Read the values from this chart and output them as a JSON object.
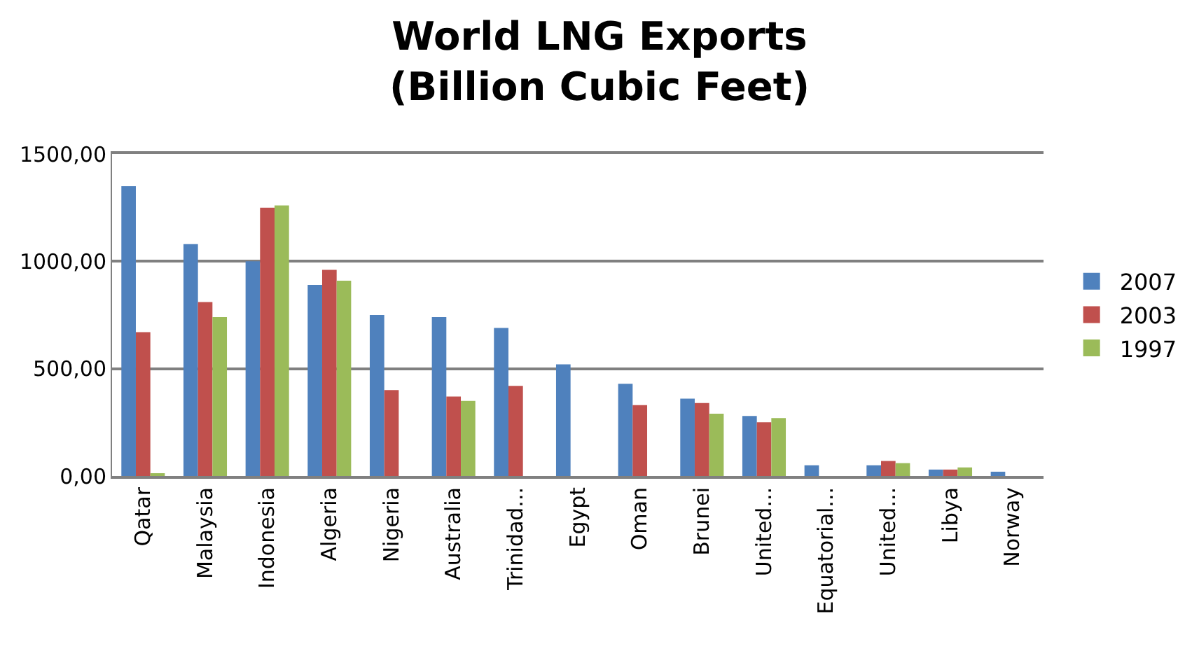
{
  "chart_data": {
    "type": "bar",
    "title": "World LNG Exports\n(Billion Cubic Feet)",
    "categories": [
      "Qatar",
      "Malaysia",
      "Indonesia",
      "Algeria",
      "Nigeria",
      "Australia",
      "Trinidad...",
      "Egypt",
      "Oman",
      "Brunei",
      "United...",
      "Equatorial...",
      "United...",
      "Libya",
      "Norway"
    ],
    "series": [
      {
        "name": "2007",
        "color": "#4f81bd",
        "values": [
          1350,
          1080,
          1000,
          890,
          750,
          740,
          690,
          520,
          430,
          360,
          280,
          50,
          50,
          30,
          20
        ]
      },
      {
        "name": "2003",
        "color": "#c0504d",
        "values": [
          670,
          810,
          1250,
          960,
          400,
          370,
          420,
          null,
          330,
          340,
          250,
          null,
          70,
          30,
          null
        ]
      },
      {
        "name": "1997",
        "color": "#9bbb59",
        "values": [
          10,
          740,
          1260,
          910,
          null,
          350,
          null,
          null,
          null,
          290,
          270,
          null,
          60,
          40,
          null
        ]
      }
    ],
    "ylim": [
      0,
      1500
    ],
    "yticks": [
      {
        "value": 0,
        "label": "0,00"
      },
      {
        "value": 500,
        "label": "500,00"
      },
      {
        "value": 1000,
        "label": "1000,00"
      },
      {
        "value": 1500,
        "label": "1500,00"
      }
    ],
    "grid": "y",
    "legend": "right"
  }
}
